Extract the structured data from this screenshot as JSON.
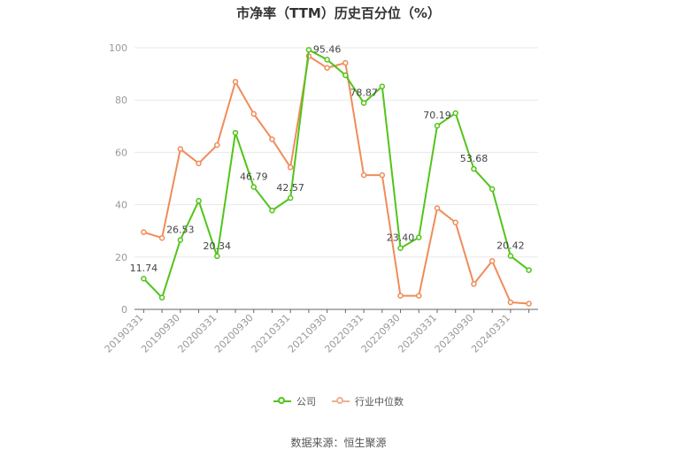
{
  "title": "市净率（TTM）历史百分位（%）",
  "source": "数据来源：恒生聚源",
  "colors": {
    "company": "#52c41a",
    "industry": "#f08c5a",
    "grid": "#e8e8e8",
    "axis": "#666666"
  },
  "chart_data": {
    "type": "line",
    "title": "市净率（TTM）历史百分位（%）",
    "xlabel": "",
    "ylabel": "",
    "ylim": [
      0,
      100
    ],
    "yticks": [
      0,
      20,
      40,
      60,
      80,
      100
    ],
    "grid": true,
    "legend_position": "bottom",
    "x": [
      "20190331",
      "20190630",
      "20190930",
      "20191231",
      "20200331",
      "20200630",
      "20200930",
      "20201231",
      "20210331",
      "20210630",
      "20210930",
      "20211231",
      "20220331",
      "20220630",
      "20220930",
      "20221231",
      "20230331",
      "20230630",
      "20230930",
      "20231231",
      "20240331",
      "20240630"
    ],
    "xticks": [
      "20190331",
      "20190930",
      "20200331",
      "20200930",
      "20210331",
      "20210930",
      "20220331",
      "20220930",
      "20230331",
      "20230930",
      "20240331"
    ],
    "series": [
      {
        "name": "公司",
        "values": [
          11.74,
          4.5,
          26.53,
          41.5,
          20.34,
          67.5,
          46.79,
          37.8,
          42.57,
          99.2,
          95.46,
          89.5,
          78.87,
          85.2,
          23.4,
          27.5,
          70.19,
          75.0,
          53.68,
          46.0,
          20.42,
          15.0
        ],
        "labels": {
          "0": "11.74",
          "2": "26.53",
          "4": "20.34",
          "6": "46.79",
          "8": "42.57",
          "10": "95.46",
          "12": "78.87",
          "14": "23.40",
          "16": "70.19",
          "18": "53.68",
          "20": "20.42"
        }
      },
      {
        "name": "行业中位数",
        "values": [
          29.5,
          27.3,
          61.3,
          55.8,
          62.8,
          87.0,
          74.7,
          65.0,
          54.3,
          96.8,
          92.3,
          94.2,
          51.3,
          51.3,
          5.2,
          5.2,
          38.7,
          33.2,
          9.7,
          18.5,
          2.7,
          2.2
        ]
      }
    ]
  }
}
